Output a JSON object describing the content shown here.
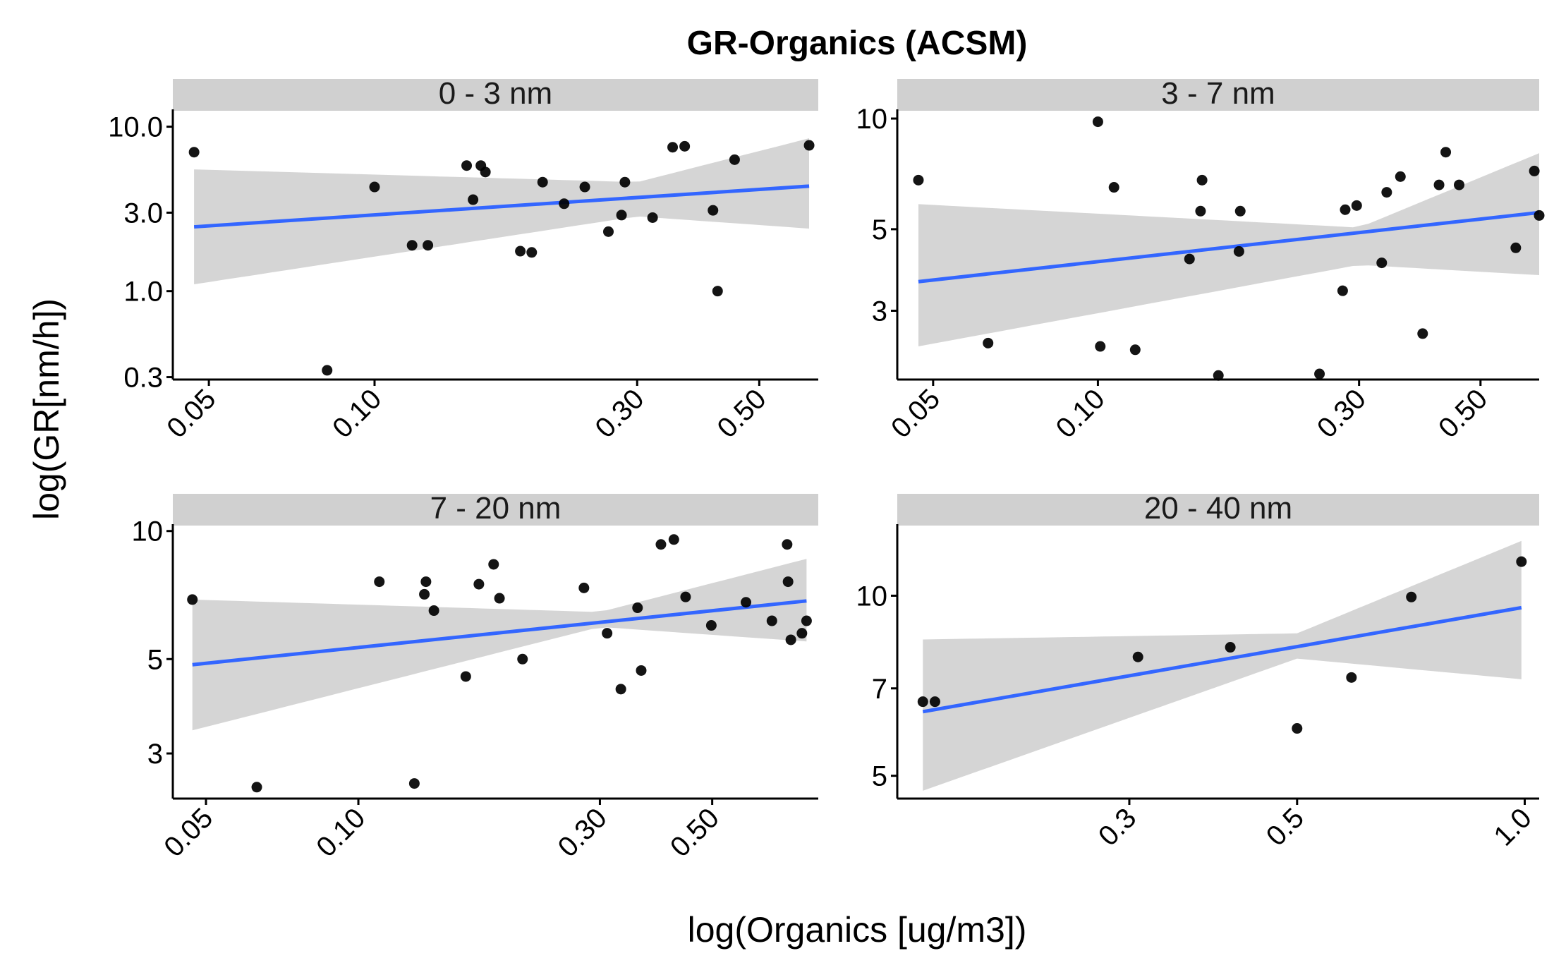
{
  "figure": {
    "title": "GR-Organics (ACSM)",
    "xlabel": "log(Organics [ug/m3])",
    "ylabel": "log(GR[nm/h])"
  },
  "chart_data": [
    {
      "type": "scatter",
      "panel": "0 - 3 nm",
      "x_scale": "log",
      "y_scale": "log",
      "xlim": [
        0.043,
        0.64
      ],
      "ylim": [
        0.29,
        12.5
      ],
      "x_ticks": [
        {
          "v": 0.05,
          "label": "0.05"
        },
        {
          "v": 0.1,
          "label": "0.10"
        },
        {
          "v": 0.3,
          "label": "0.30"
        },
        {
          "v": 0.5,
          "label": "0.50"
        }
      ],
      "y_ticks": [
        {
          "v": 0.3,
          "label": "0.3"
        },
        {
          "v": 1,
          "label": "1.0"
        },
        {
          "v": 3,
          "label": "3.0"
        },
        {
          "v": 10,
          "label": "10.0"
        }
      ],
      "points": [
        [
          0.047,
          7.0
        ],
        [
          0.082,
          0.33
        ],
        [
          0.1,
          4.3
        ],
        [
          0.117,
          1.9
        ],
        [
          0.125,
          1.9
        ],
        [
          0.147,
          5.8
        ],
        [
          0.151,
          3.6
        ],
        [
          0.156,
          5.8
        ],
        [
          0.159,
          5.3
        ],
        [
          0.184,
          1.75
        ],
        [
          0.193,
          1.72
        ],
        [
          0.202,
          4.6
        ],
        [
          0.221,
          3.4
        ],
        [
          0.241,
          4.3
        ],
        [
          0.266,
          2.3
        ],
        [
          0.281,
          2.9
        ],
        [
          0.285,
          4.6
        ],
        [
          0.32,
          2.8
        ],
        [
          0.348,
          7.5
        ],
        [
          0.366,
          7.6
        ],
        [
          0.412,
          3.1
        ],
        [
          0.42,
          1.0
        ],
        [
          0.451,
          6.3
        ],
        [
          0.616,
          7.7
        ]
      ],
      "fit": {
        "x": [
          0.047,
          0.616
        ],
        "y": [
          2.46,
          4.35
        ]
      },
      "band": {
        "x": [
          0.047,
          0.3,
          0.616
        ],
        "lower": [
          1.1,
          2.85,
          2.4
        ],
        "upper": [
          5.5,
          4.6,
          8.5
        ]
      }
    },
    {
      "type": "scatter",
      "panel": "3 - 7 nm",
      "x_scale": "log",
      "y_scale": "log",
      "xlim": [
        0.043,
        0.64
      ],
      "ylim": [
        1.95,
        10.5
      ],
      "x_ticks": [
        {
          "v": 0.05,
          "label": "0.05"
        },
        {
          "v": 0.1,
          "label": "0.10"
        },
        {
          "v": 0.3,
          "label": "0.30"
        },
        {
          "v": 0.5,
          "label": "0.50"
        }
      ],
      "y_ticks": [
        {
          "v": 3,
          "label": "3"
        },
        {
          "v": 5,
          "label": "5"
        },
        {
          "v": 10,
          "label": "10"
        }
      ],
      "points": [
        [
          0.047,
          6.8
        ],
        [
          0.063,
          2.45
        ],
        [
          0.1,
          9.8
        ],
        [
          0.101,
          2.4
        ],
        [
          0.107,
          6.5
        ],
        [
          0.117,
          2.35
        ],
        [
          0.147,
          4.15
        ],
        [
          0.154,
          5.6
        ],
        [
          0.155,
          6.8
        ],
        [
          0.166,
          2.0
        ],
        [
          0.181,
          4.35
        ],
        [
          0.182,
          5.6
        ],
        [
          0.254,
          2.02
        ],
        [
          0.28,
          3.4
        ],
        [
          0.283,
          5.65
        ],
        [
          0.297,
          5.8
        ],
        [
          0.33,
          4.05
        ],
        [
          0.337,
          6.3
        ],
        [
          0.357,
          6.95
        ],
        [
          0.392,
          2.6
        ],
        [
          0.42,
          6.6
        ],
        [
          0.432,
          8.1
        ],
        [
          0.457,
          6.6
        ],
        [
          0.58,
          4.45
        ],
        [
          0.627,
          7.2
        ],
        [
          0.64,
          5.45
        ]
      ],
      "fit": {
        "x": [
          0.047,
          0.64
        ],
        "y": [
          3.6,
          5.55
        ]
      },
      "band": {
        "x": [
          0.047,
          0.3,
          0.64
        ],
        "lower": [
          2.4,
          4.0,
          3.75
        ],
        "upper": [
          5.85,
          5.05,
          8.05
        ]
      }
    },
    {
      "type": "scatter",
      "panel": "7 - 20 nm",
      "x_scale": "log",
      "y_scale": "log",
      "xlim": [
        0.043,
        0.81
      ],
      "ylim": [
        2.35,
        10.3
      ],
      "x_ticks": [
        {
          "v": 0.05,
          "label": "0.05"
        },
        {
          "v": 0.1,
          "label": "0.10"
        },
        {
          "v": 0.3,
          "label": "0.30"
        },
        {
          "v": 0.5,
          "label": "0.50"
        }
      ],
      "y_ticks": [
        {
          "v": 3,
          "label": "3"
        },
        {
          "v": 5,
          "label": "5"
        },
        {
          "v": 10,
          "label": "10"
        }
      ],
      "points": [
        [
          0.047,
          6.9
        ],
        [
          0.063,
          2.5
        ],
        [
          0.11,
          7.6
        ],
        [
          0.129,
          2.55
        ],
        [
          0.135,
          7.1
        ],
        [
          0.136,
          7.6
        ],
        [
          0.141,
          6.5
        ],
        [
          0.163,
          4.55
        ],
        [
          0.173,
          7.5
        ],
        [
          0.185,
          8.35
        ],
        [
          0.19,
          6.95
        ],
        [
          0.211,
          5.0
        ],
        [
          0.279,
          7.35
        ],
        [
          0.31,
          5.75
        ],
        [
          0.33,
          4.25
        ],
        [
          0.356,
          6.6
        ],
        [
          0.362,
          4.7
        ],
        [
          0.396,
          9.3
        ],
        [
          0.42,
          9.55
        ],
        [
          0.443,
          7.0
        ],
        [
          0.498,
          6.0
        ],
        [
          0.583,
          6.8
        ],
        [
          0.656,
          6.15
        ],
        [
          0.703,
          9.3
        ],
        [
          0.706,
          7.6
        ],
        [
          0.715,
          5.55
        ],
        [
          0.752,
          5.75
        ],
        [
          0.768,
          6.15
        ]
      ],
      "fit": {
        "x": [
          0.047,
          0.768
        ],
        "y": [
          4.85,
          6.85
        ]
      },
      "band": {
        "x": [
          0.047,
          0.3,
          0.768
        ],
        "lower": [
          3.4,
          5.95,
          5.5
        ],
        "upper": [
          6.9,
          6.45,
          8.6
        ]
      }
    },
    {
      "type": "scatter",
      "panel": "20 - 40 nm",
      "x_scale": "log",
      "y_scale": "log",
      "xlim": [
        0.148,
        1.045
      ],
      "ylim": [
        4.58,
        13.1
      ],
      "x_ticks": [
        {
          "v": 0.3,
          "label": "0.3"
        },
        {
          "v": 0.5,
          "label": "0.5"
        },
        {
          "v": 1.0,
          "label": "1.0"
        }
      ],
      "y_ticks": [
        {
          "v": 5,
          "label": "5"
        },
        {
          "v": 7,
          "label": "7"
        },
        {
          "v": 10,
          "label": "10"
        }
      ],
      "points": [
        [
          0.16,
          6.65
        ],
        [
          0.166,
          6.65
        ],
        [
          0.308,
          7.9
        ],
        [
          0.408,
          8.2
        ],
        [
          0.5,
          6.0
        ],
        [
          0.59,
          7.3
        ],
        [
          0.708,
          9.95
        ],
        [
          0.99,
          11.4
        ]
      ],
      "fit": {
        "x": [
          0.16,
          0.99
        ],
        "y": [
          6.4,
          9.55
        ]
      },
      "band": {
        "x": [
          0.16,
          0.5,
          0.99
        ],
        "lower": [
          4.72,
          7.85,
          7.25
        ],
        "upper": [
          8.45,
          8.65,
          12.35
        ]
      }
    }
  ]
}
